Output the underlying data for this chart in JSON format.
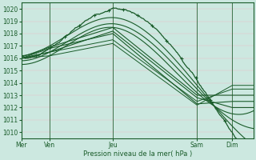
{
  "bg_color": "#cce8e0",
  "line_color": "#1a5c2a",
  "xlabel": "Pression niveau de la mer( hPa )",
  "ylim": [
    1009.5,
    1020.5
  ],
  "yticks": [
    1010,
    1011,
    1012,
    1013,
    1014,
    1015,
    1016,
    1017,
    1018,
    1019,
    1020
  ],
  "day_labels": [
    "Mer",
    "Ven",
    "Jeu",
    "Sam",
    "Dim"
  ],
  "day_positions": [
    0,
    16,
    52,
    100,
    120
  ],
  "total_hours": 132,
  "grid_minor_color": "#e8c0c8",
  "grid_major_color": "#c8a8b0",
  "vline_color": "#2a6040",
  "lines": [
    {
      "points": [
        [
          0,
          1016.0
        ],
        [
          16,
          1016.8
        ],
        [
          52,
          1020.0
        ],
        [
          100,
          1014.2
        ],
        [
          120,
          1010.0
        ]
      ],
      "straight": false,
      "lw": 0.9,
      "marker": true
    },
    {
      "points": [
        [
          0,
          1016.2
        ],
        [
          16,
          1017.0
        ],
        [
          52,
          1019.3
        ],
        [
          100,
          1013.8
        ],
        [
          120,
          1010.5
        ]
      ],
      "straight": false,
      "lw": 0.8,
      "marker": false
    },
    {
      "points": [
        [
          0,
          1015.8
        ],
        [
          16,
          1016.5
        ],
        [
          52,
          1018.8
        ],
        [
          100,
          1013.5
        ],
        [
          120,
          1011.0
        ]
      ],
      "straight": false,
      "lw": 0.8,
      "marker": false
    },
    {
      "points": [
        [
          0,
          1015.5
        ],
        [
          16,
          1016.2
        ],
        [
          52,
          1018.5
        ],
        [
          100,
          1013.2
        ],
        [
          120,
          1011.5
        ]
      ],
      "straight": false,
      "lw": 0.8,
      "marker": false
    },
    {
      "points": [
        [
          0,
          1016.0
        ],
        [
          16,
          1016.5
        ],
        [
          52,
          1018.2
        ],
        [
          100,
          1012.8
        ],
        [
          120,
          1012.0
        ]
      ],
      "straight": true,
      "lw": 0.8,
      "marker": false
    },
    {
      "points": [
        [
          0,
          1016.0
        ],
        [
          16,
          1016.8
        ],
        [
          52,
          1018.0
        ],
        [
          100,
          1012.3
        ],
        [
          120,
          1012.5
        ]
      ],
      "straight": true,
      "lw": 0.8,
      "marker": false
    },
    {
      "points": [
        [
          0,
          1016.1
        ],
        [
          16,
          1016.9
        ],
        [
          52,
          1018.5
        ],
        [
          100,
          1013.0
        ],
        [
          120,
          1013.0
        ]
      ],
      "straight": true,
      "lw": 0.8,
      "marker": false
    },
    {
      "points": [
        [
          0,
          1016.0
        ],
        [
          16,
          1016.5
        ],
        [
          52,
          1017.5
        ],
        [
          100,
          1012.5
        ],
        [
          120,
          1013.5
        ]
      ],
      "straight": true,
      "lw": 0.7,
      "marker": false
    },
    {
      "points": [
        [
          0,
          1016.0
        ],
        [
          16,
          1016.2
        ],
        [
          52,
          1017.2
        ],
        [
          100,
          1012.2
        ],
        [
          120,
          1013.8
        ]
      ],
      "straight": true,
      "lw": 0.7,
      "marker": false
    }
  ]
}
